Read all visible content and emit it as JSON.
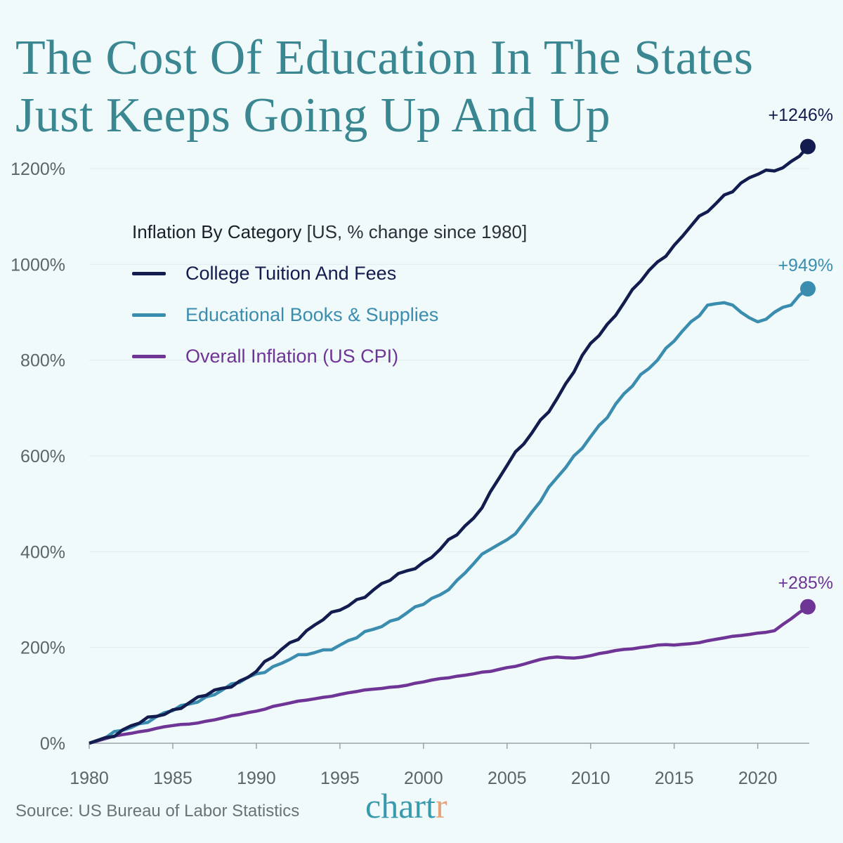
{
  "title_lines": [
    "The Cost Of Education In The States",
    "Just Keeps Going Up And Up"
  ],
  "legend": {
    "title": "Inflation By Category",
    "subtitle": "[US, % change since 1980]",
    "items": [
      {
        "label": "College Tuition And Fees",
        "suffix": "",
        "color": "#121c4e"
      },
      {
        "label": "Educational Books & Supplies",
        "suffix": "",
        "color": "#3b8db0"
      },
      {
        "label": "Overall Inflation",
        "suffix": " (US CPI)",
        "color": "#6e3496"
      }
    ]
  },
  "source": "Source: US Bureau of Labor Statistics",
  "logo": {
    "main": "chart",
    "accent": "r"
  },
  "chart_data": {
    "type": "line",
    "title": "The Cost Of Education In The States Just Keeps Going Up And Up",
    "xlabel": "",
    "ylabel": "",
    "xlim": [
      1980,
      2023
    ],
    "ylim": [
      0,
      1200
    ],
    "x_ticks": [
      "1980",
      "1985",
      "1990",
      "1995",
      "2000",
      "2005",
      "2010",
      "2015",
      "2020"
    ],
    "y_ticks": [
      "0%",
      "200%",
      "400%",
      "600%",
      "800%",
      "1000%",
      "1200%"
    ],
    "grid": "horizontal",
    "legend_position": "top-left",
    "x": [
      1980,
      1981,
      1982,
      1983,
      1984,
      1985,
      1986,
      1987,
      1988,
      1989,
      1990,
      1991,
      1992,
      1993,
      1994,
      1995,
      1996,
      1997,
      1998,
      1999,
      2000,
      2001,
      2002,
      2003,
      2004,
      2005,
      2006,
      2007,
      2008,
      2009,
      2010,
      2011,
      2012,
      2013,
      2014,
      2015,
      2016,
      2017,
      2018,
      2019,
      2020,
      2021,
      2022,
      2023
    ],
    "series": [
      {
        "name": "College Tuition And Fees",
        "color": "#121c4e",
        "end_label": "+1246%",
        "values": [
          0,
          12,
          28,
          42,
          56,
          70,
          85,
          100,
          115,
          130,
          150,
          180,
          210,
          235,
          258,
          278,
          300,
          320,
          340,
          360,
          378,
          405,
          435,
          470,
          525,
          580,
          625,
          675,
          720,
          775,
          835,
          875,
          920,
          965,
          1005,
          1040,
          1080,
          1110,
          1145,
          1170,
          1188,
          1195,
          1215,
          1246
        ]
      },
      {
        "name": "Educational Books & Supplies",
        "color": "#3b8db0",
        "end_label": "+949%",
        "values": [
          0,
          12,
          27,
          41,
          55,
          68,
          82,
          97,
          112,
          127,
          145,
          160,
          175,
          185,
          195,
          205,
          220,
          238,
          255,
          272,
          290,
          310,
          340,
          375,
          405,
          425,
          460,
          505,
          555,
          600,
          640,
          680,
          730,
          770,
          800,
          840,
          880,
          915,
          920,
          900,
          880,
          900,
          915,
          949
        ]
      },
      {
        "name": "Overall Inflation (US CPI)",
        "color": "#6e3496",
        "end_label": "+285%",
        "values": [
          0,
          10,
          18,
          24,
          31,
          37,
          40,
          46,
          53,
          60,
          67,
          77,
          84,
          90,
          96,
          102,
          108,
          113,
          117,
          121,
          128,
          135,
          140,
          145,
          150,
          158,
          165,
          175,
          180,
          178,
          183,
          190,
          196,
          200,
          205,
          205,
          208,
          214,
          220,
          225,
          230,
          235,
          260,
          285
        ]
      }
    ]
  }
}
